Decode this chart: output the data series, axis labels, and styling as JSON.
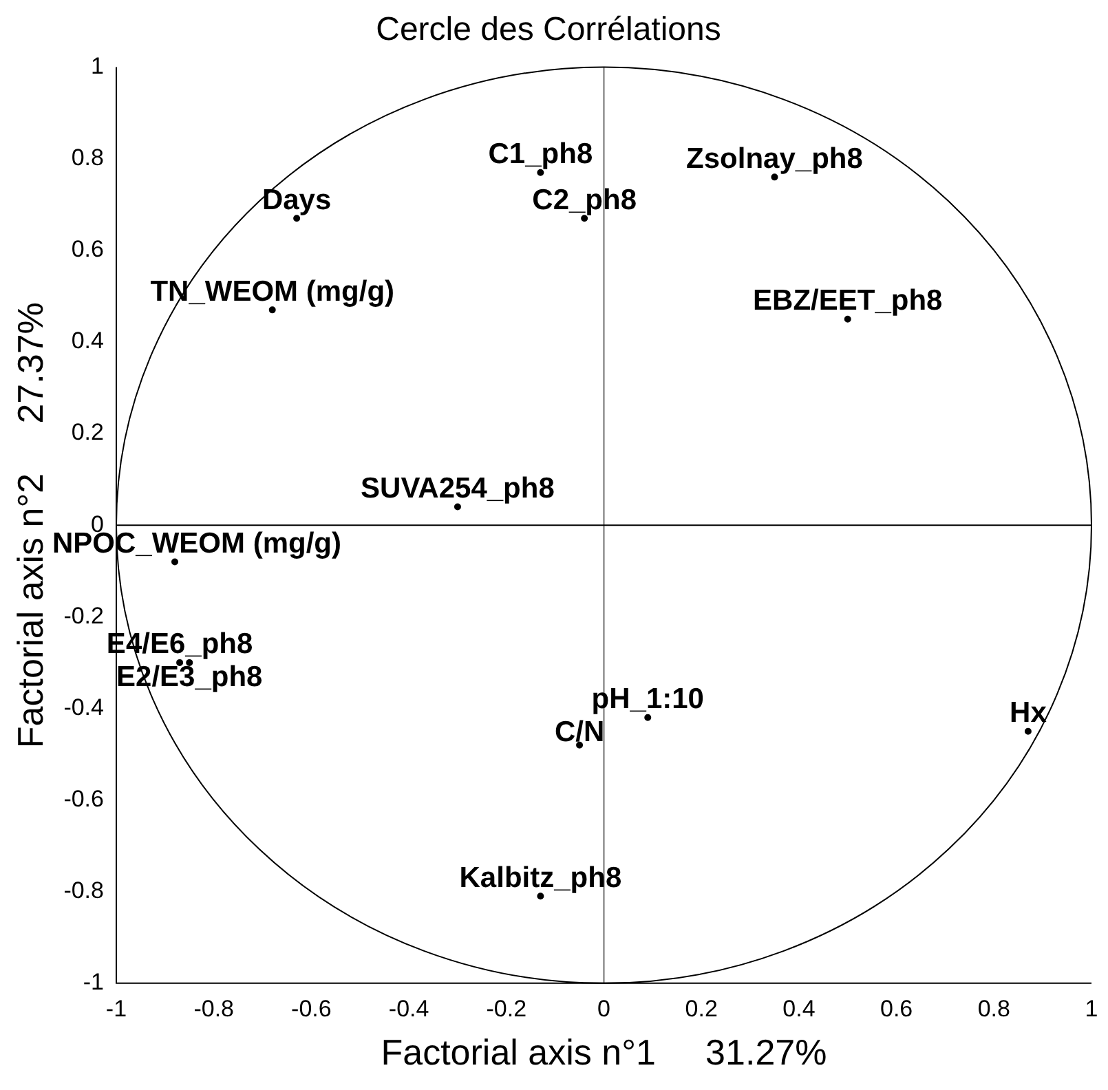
{
  "chart_data": {
    "type": "scatter",
    "title": "Cercle des Corrélations",
    "xlabel": "Factorial axis n°1     31.27%",
    "ylabel": "Factorial axis n°2     27.37%",
    "xlim": [
      -1,
      1
    ],
    "ylim": [
      -1,
      1
    ],
    "xticks": [
      -1,
      -0.8,
      -0.6,
      -0.4,
      -0.2,
      0,
      0.2,
      0.4,
      0.6,
      0.8,
      1
    ],
    "yticks": [
      -1,
      -0.8,
      -0.6,
      -0.4,
      -0.2,
      0,
      0.2,
      0.4,
      0.6,
      0.8,
      1
    ],
    "marker": "circle",
    "ref_lines": [
      {
        "axis": "x",
        "value": 0,
        "color": "#707070"
      },
      {
        "axis": "y",
        "value": 0,
        "color": "#000000"
      }
    ],
    "series": [
      {
        "color": "#000000",
        "x": [
          -0.13,
          -0.04,
          0.35,
          -0.63,
          -0.68,
          0.5,
          -0.3,
          -0.88,
          -0.87,
          -0.85,
          0.09,
          -0.05,
          0.87,
          -0.13
        ],
        "values": [
          0.77,
          0.67,
          0.76,
          0.67,
          0.47,
          0.45,
          0.04,
          -0.08,
          -0.3,
          -0.3,
          -0.42,
          -0.48,
          -0.45,
          -0.81
        ],
        "value_labels": [
          "C1_ph8",
          "C2_ph8",
          "Zsolnay_ph8",
          "Days",
          "TN_WEOM (mg/g)",
          "EBZ/EET_ph8",
          "SUVA254_ph8",
          "NPOC_WEOM (mg/g)",
          "E4/E6_ph8",
          "E2/E3_ph8",
          "pH_1:10",
          "C/N",
          "Hx",
          "Kalbitz_ph8"
        ]
      }
    ]
  }
}
